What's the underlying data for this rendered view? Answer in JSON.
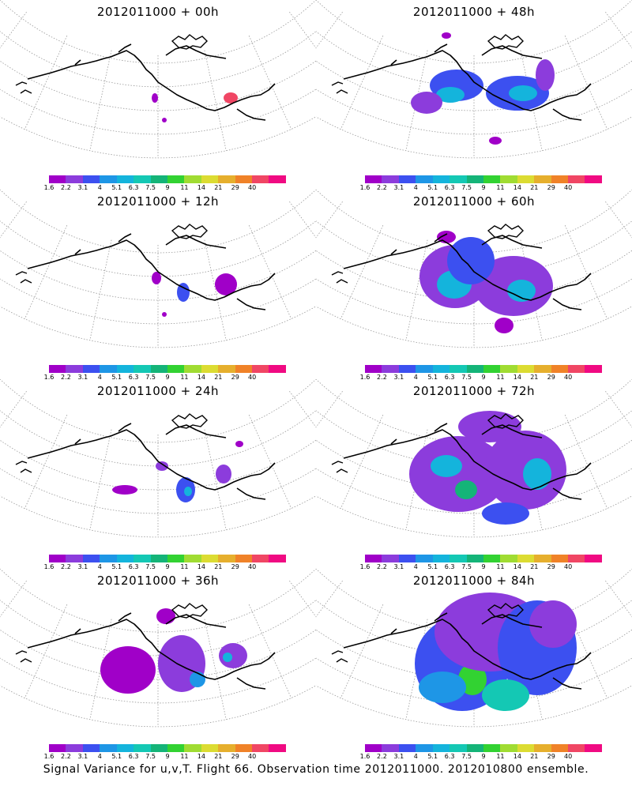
{
  "panels": [
    {
      "title": "2012011000 + 00h",
      "lead": "00h"
    },
    {
      "title": "2012011000 + 48h",
      "lead": "48h"
    },
    {
      "title": "2012011000 + 12h",
      "lead": "12h"
    },
    {
      "title": "2012011000 + 60h",
      "lead": "60h"
    },
    {
      "title": "2012011000 + 24h",
      "lead": "24h"
    },
    {
      "title": "2012011000 + 72h",
      "lead": "72h"
    },
    {
      "title": "2012011000 + 36h",
      "lead": "36h"
    },
    {
      "title": "2012011000 + 84h",
      "lead": "84h"
    }
  ],
  "colorbar": {
    "labels": [
      "1.6",
      "2.2",
      "3.1",
      "4",
      "5.1",
      "6.3",
      "7.5",
      "9",
      "11",
      "14",
      "21",
      "29",
      "40"
    ],
    "colors": [
      "#a000c8",
      "#8c3cdc",
      "#3c50f0",
      "#1e96e6",
      "#14b4dc",
      "#14c8b4",
      "#14b478",
      "#32d232",
      "#a0dc32",
      "#dcdc32",
      "#e6af2d",
      "#f08228",
      "#f04664",
      "#f00a82"
    ]
  },
  "caption": "Signal Variance for u,v,T. Flight 66. Observation time 2012011000. 2012010800 ensemble."
}
